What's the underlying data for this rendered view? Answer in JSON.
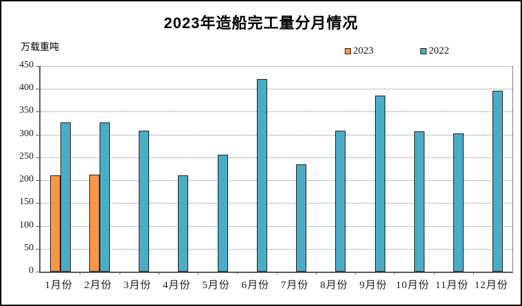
{
  "title": "2023年造船完工量分月情况",
  "y_axis_unit_label": "万载重吨",
  "legend": {
    "items": [
      {
        "label": "2023",
        "color": "#F79646"
      },
      {
        "label": "2022",
        "color": "#4BACC6"
      }
    ]
  },
  "chart_data": {
    "type": "bar",
    "title": "2023年造船完工量分月情况",
    "xlabel": "",
    "ylabel": "万载重吨",
    "categories": [
      "1月份",
      "2月份",
      "3月份",
      "4月份",
      "5月份",
      "6月份",
      "7月份",
      "8月份",
      "9月份",
      "10月份",
      "11月份",
      "12月份"
    ],
    "series": [
      {
        "name": "2023",
        "color": "#F79646",
        "values": [
          211,
          212,
          null,
          null,
          null,
          null,
          null,
          null,
          null,
          null,
          null,
          null
        ]
      },
      {
        "name": "2022",
        "color": "#4BACC6",
        "values": [
          327,
          327,
          308,
          210,
          256,
          422,
          235,
          309,
          386,
          307,
          303,
          396
        ]
      }
    ],
    "ylim": [
      0,
      450
    ],
    "ytick_step": 50,
    "yticks": [
      0,
      50,
      100,
      150,
      200,
      250,
      300,
      350,
      400,
      450
    ],
    "grid": true,
    "gridline_style": "dotted",
    "legend_position": "top-right",
    "bar_border_color": "#1f1f1f",
    "background": "#ffffff",
    "frame_border_color": "#000000"
  }
}
